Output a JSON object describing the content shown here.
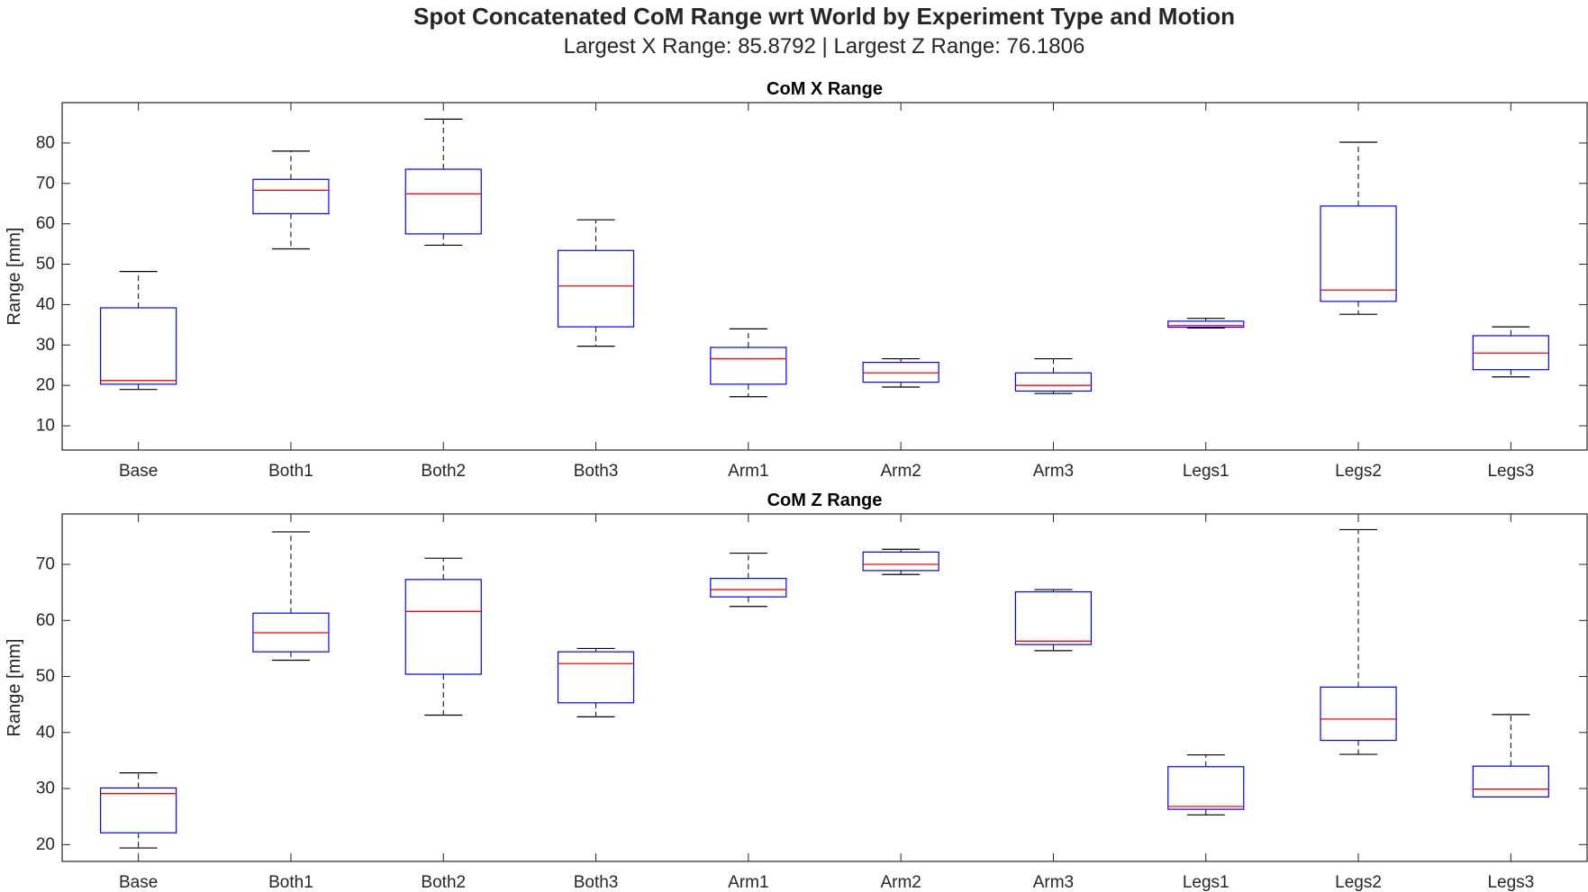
{
  "title": "Spot Concatenated CoM Range wrt World by Experiment Type and Motion",
  "subtitle": "Largest X Range: 85.8792  |  Largest Z Range: 76.1806",
  "colors": {
    "box": "#0000ff",
    "median": "#ff0000",
    "whisker": "#000000",
    "axis": "#262626"
  },
  "chart_data": [
    {
      "type": "box",
      "title": "CoM X Range",
      "ylabel": "Range [mm]",
      "xlabel": "",
      "ylim": [
        4,
        90
      ],
      "yticks": [
        10,
        20,
        30,
        40,
        50,
        60,
        70,
        80
      ],
      "grid": false,
      "categories": [
        "Base",
        "Both1",
        "Both2",
        "Both3",
        "Arm1",
        "Arm2",
        "Arm3",
        "Legs1",
        "Legs2",
        "Legs3"
      ],
      "boxes": [
        {
          "min": 19,
          "q1": 20.3,
          "median": 21.2,
          "q3": 39.2,
          "max": 48.2
        },
        {
          "min": 53.8,
          "q1": 62.5,
          "median": 68.3,
          "q3": 71,
          "max": 78
        },
        {
          "min": 54.7,
          "q1": 57.5,
          "median": 67.4,
          "q3": 73.5,
          "max": 85.9
        },
        {
          "min": 29.7,
          "q1": 34.5,
          "median": 44.6,
          "q3": 53.4,
          "max": 61
        },
        {
          "min": 17.2,
          "q1": 20.3,
          "median": 26.6,
          "q3": 29.4,
          "max": 34
        },
        {
          "min": 19.6,
          "q1": 20.8,
          "median": 23.1,
          "q3": 25.7,
          "max": 26.6
        },
        {
          "min": 18,
          "q1": 18.6,
          "median": 20,
          "q3": 23.1,
          "max": 26.6
        },
        {
          "min": 34.2,
          "q1": 34.4,
          "median": 34.8,
          "q3": 35.9,
          "max": 36.6
        },
        {
          "min": 37.6,
          "q1": 40.8,
          "median": 43.6,
          "q3": 64.4,
          "max": 80.2
        },
        {
          "min": 22.1,
          "q1": 23.9,
          "median": 28,
          "q3": 32.3,
          "max": 34.5
        }
      ]
    },
    {
      "type": "box",
      "title": "CoM Z Range",
      "ylabel": "Range [mm]",
      "xlabel": "",
      "ylim": [
        17,
        79
      ],
      "yticks": [
        20,
        30,
        40,
        50,
        60,
        70
      ],
      "grid": false,
      "categories": [
        "Base",
        "Both1",
        "Both2",
        "Both3",
        "Arm1",
        "Arm2",
        "Arm3",
        "Legs1",
        "Legs2",
        "Legs3"
      ],
      "boxes": [
        {
          "min": 19.4,
          "q1": 22.1,
          "median": 29.1,
          "q3": 30.1,
          "max": 32.8
        },
        {
          "min": 52.9,
          "q1": 54.4,
          "median": 57.8,
          "q3": 61.3,
          "max": 75.8
        },
        {
          "min": 43.1,
          "q1": 50.4,
          "median": 61.6,
          "q3": 67.3,
          "max": 71.1
        },
        {
          "min": 42.8,
          "q1": 45.3,
          "median": 52.3,
          "q3": 54.4,
          "max": 55
        },
        {
          "min": 62.5,
          "q1": 64.2,
          "median": 65.5,
          "q3": 67.5,
          "max": 72
        },
        {
          "min": 68.2,
          "q1": 68.9,
          "median": 70,
          "q3": 72.2,
          "max": 72.7
        },
        {
          "min": 54.6,
          "q1": 55.7,
          "median": 56.3,
          "q3": 65.1,
          "max": 65.5
        },
        {
          "min": 25.3,
          "q1": 26.3,
          "median": 26.8,
          "q3": 33.9,
          "max": 36
        },
        {
          "min": 36.1,
          "q1": 38.6,
          "median": 42.4,
          "q3": 48.1,
          "max": 76.2
        },
        {
          "min": 28.5,
          "q1": 28.5,
          "median": 29.9,
          "q3": 34,
          "max": 43.2
        }
      ]
    }
  ]
}
